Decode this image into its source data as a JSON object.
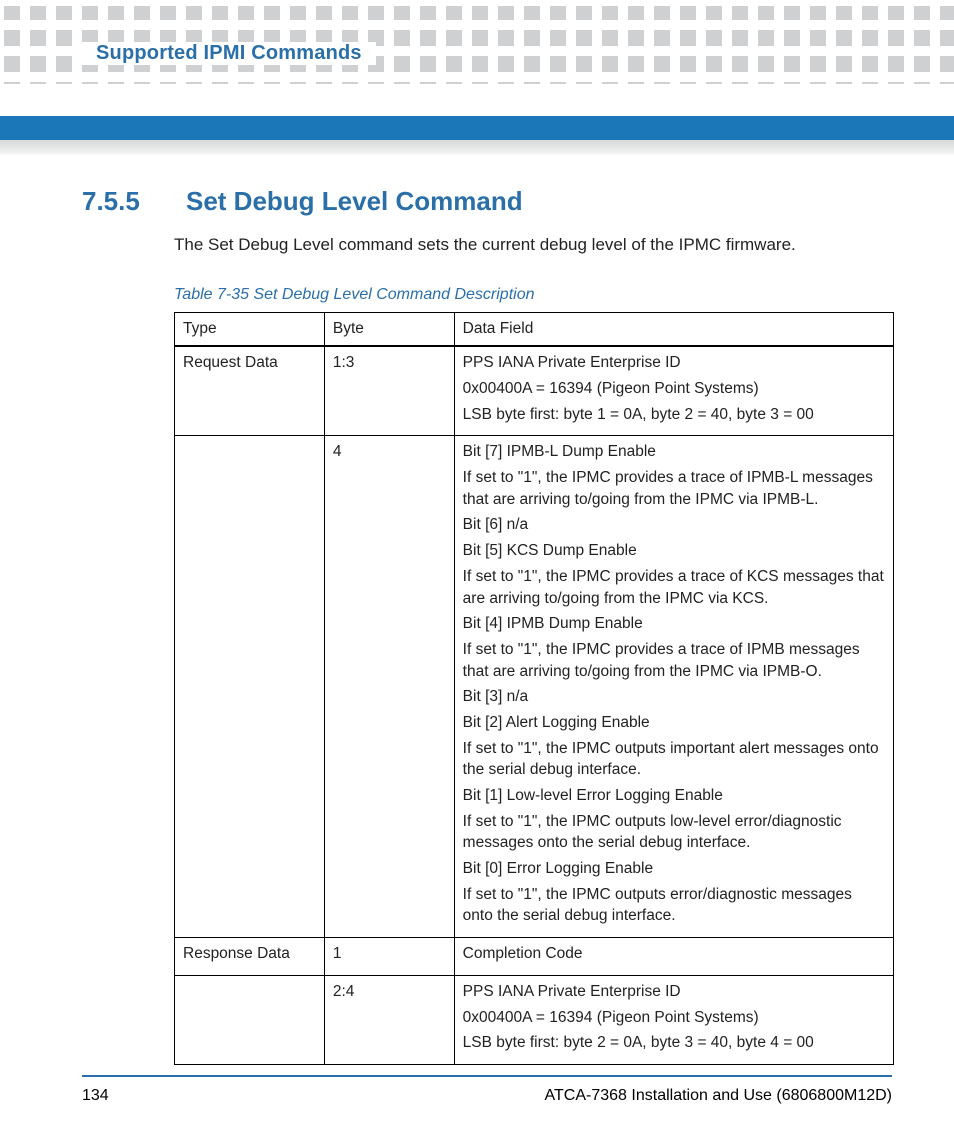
{
  "colors": {
    "accent_bar": "#1c77b8",
    "accent_text": "#2a6fa7",
    "band_grey": "#c9cbcd",
    "page_bg": "#ffffff"
  },
  "header": {
    "running_title": "Supported IPMI Commands"
  },
  "section": {
    "number": "7.5.5",
    "title": "Set Debug Level Command",
    "intro": "The Set Debug Level command sets the current debug level of the IPMC firmware."
  },
  "table": {
    "caption": "Table 7-35 Set Debug Level Command Description",
    "columns": [
      "Type",
      "Byte",
      "Data Field"
    ],
    "rows": [
      {
        "type": "Request Data",
        "byte": "1:3",
        "data_lines": [
          "PPS IANA Private Enterprise ID",
          "0x00400A = 16394 (Pigeon Point Systems)",
          "LSB byte first: byte 1 = 0A, byte 2 = 40, byte 3 = 00"
        ]
      },
      {
        "type": "",
        "byte": "4",
        "data_lines": [
          "Bit [7] IPMB-L Dump Enable",
          "If set to \"1\", the IPMC provides a trace of IPMB-L messages that are arriving to/going from the IPMC via IPMB-L.",
          "Bit [6] n/a",
          "Bit [5] KCS Dump Enable",
          "If set to \"1\", the IPMC provides a trace of KCS messages that are arriving to/going from the IPMC via KCS.",
          "Bit [4] IPMB Dump Enable",
          "If set to \"1\", the IPMC provides a trace of IPMB messages that are arriving to/going from the IPMC via IPMB-O.",
          "Bit [3] n/a",
          "Bit [2] Alert Logging Enable",
          "If set to \"1\", the IPMC outputs important alert messages onto the serial debug interface.",
          "Bit [1] Low-level Error Logging Enable",
          "If set to \"1\", the IPMC outputs low-level error/diagnostic messages onto the serial debug interface.",
          "Bit [0] Error Logging Enable",
          "If set to \"1\", the IPMC outputs error/diagnostic messages onto the serial debug interface."
        ]
      },
      {
        "type": "Response Data",
        "byte": "1",
        "data_lines": [
          "Completion Code"
        ]
      },
      {
        "type": "",
        "byte": "2:4",
        "data_lines": [
          "PPS IANA Private Enterprise ID",
          "0x00400A = 16394 (Pigeon Point Systems)",
          "LSB byte first: byte 2 = 0A, byte 3 = 40, byte 4 = 00"
        ]
      }
    ]
  },
  "footer": {
    "page_number": "134",
    "doc_title": "ATCA-7368 Installation and Use (6806800M12D)"
  }
}
